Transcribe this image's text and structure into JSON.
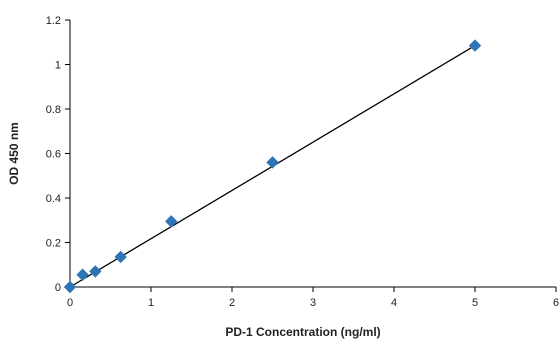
{
  "chart_data": {
    "type": "scatter",
    "xlabel": "PD-1 Concentration (ng/ml)",
    "ylabel": "OD 450 nm",
    "xlim": [
      0,
      6
    ],
    "ylim": [
      0,
      1.2
    ],
    "xticks": [
      0,
      1,
      2,
      3,
      4,
      5,
      6
    ],
    "yticks": [
      0,
      0.2,
      0.4,
      0.6,
      0.8,
      1,
      1.2
    ],
    "grid": false,
    "legend": "none",
    "series": [
      {
        "x": [
          0,
          0.156,
          0.313,
          0.625,
          1.25,
          2.5,
          5
        ],
        "y": [
          0.0,
          0.055,
          0.07,
          0.135,
          0.295,
          0.56,
          1.085
        ],
        "marker": "diamond",
        "color": "#2e75b6"
      }
    ],
    "trendline": {
      "type": "linear",
      "x": [
        0,
        5
      ],
      "y": [
        0.0,
        1.085
      ],
      "color": "#000000"
    }
  }
}
